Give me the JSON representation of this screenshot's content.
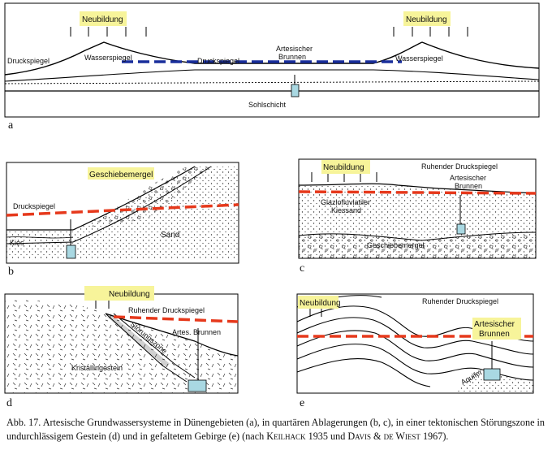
{
  "panels": {
    "a": {
      "letter": "a",
      "neubildung_left": "Neubildung",
      "neubildung_right": "Neubildung",
      "druckspiegel_left": "Druckspiegel",
      "wasserspiegel_left": "Wasserspiegel",
      "druckspiegel_mid": "Druckspiegel",
      "artesischer_l1": "Artesischer",
      "artesischer_l2": "Brunnen",
      "wasserspiegel_right": "Wasserspiegel",
      "sohlschicht": "Sohlschicht"
    },
    "b": {
      "letter": "b",
      "geschiebemergel": "Geschiebemergel",
      "druckspiegel": "Druckspiegel",
      "kies": "Kies",
      "sand": "Sand"
    },
    "c": {
      "letter": "c",
      "neubildung": "Neubildung",
      "ruhender": "Ruhender Druckspiegel",
      "artesischer_l1": "Artesischer",
      "artesischer_l2": "Brunnen",
      "glazio_l1": "Glaziofluviatiler",
      "glazio_l2": "Kiessand",
      "geschiebemergel": "Geschiebemergel"
    },
    "d": {
      "letter": "d",
      "neubildung": "Neubildung",
      "ruhender": "Ruhender Druckspiegel",
      "artes": "Artes. Brunnen",
      "stoerungszone": "Störungszone",
      "kristallingestein": "Kristallingestein"
    },
    "e": {
      "letter": "e",
      "neubildung": "Neubildung",
      "ruhender": "Ruhender Druckspiegel",
      "artesischer_l1": "Artesischer",
      "artesischer_l2": "Brunnen",
      "aquifer": "Aquifer"
    }
  },
  "caption": {
    "main": "Abb. 17. Artesische Grundwassersysteme in Dünengebieten (a), in quartären Ablagerungen (b, c), in einer tektonischen Störungszone in undurchlässigem Gestein (d) und in gefaltetem Gebirge (e) (nach ",
    "author1": "Keilhack",
    "mid": " 1935 und ",
    "author2": "Davis & de Wiest",
    "tail": " 1967)."
  },
  "colors": {
    "highlight": "#f7f49a",
    "blue_dash": "#1a2f9c",
    "red_dash": "#e6391c",
    "well": "#a9d8e2"
  }
}
